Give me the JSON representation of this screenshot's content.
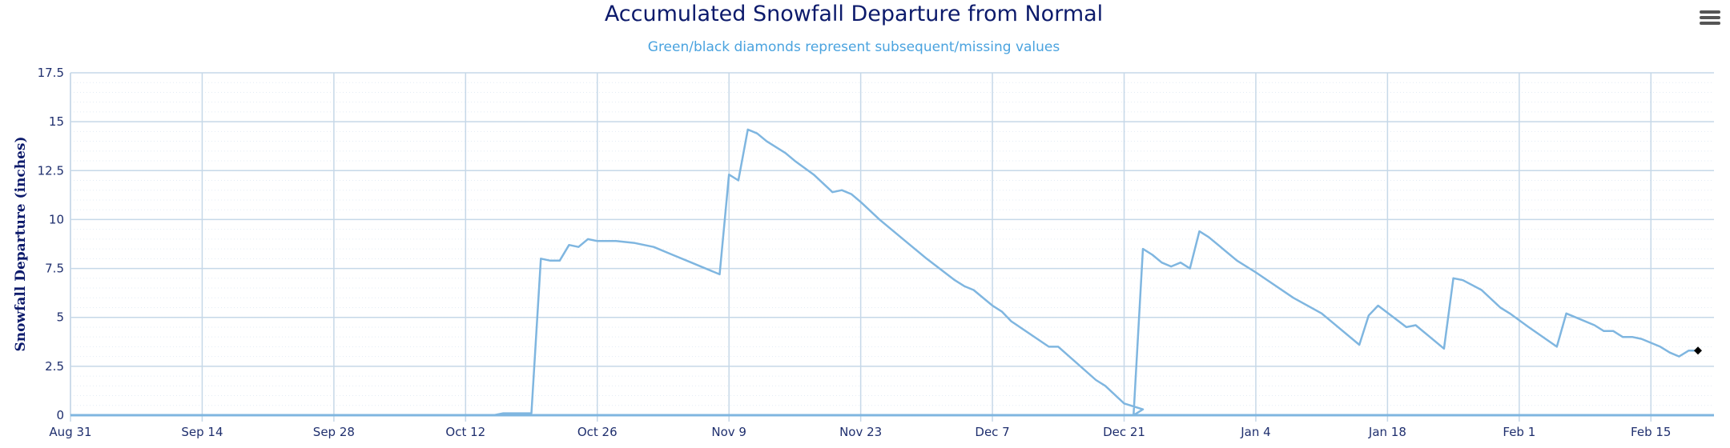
{
  "chart_data": {
    "type": "line",
    "title": "Accumulated Snowfall Departure from Normal",
    "subtitle": "Green/black diamonds represent subsequent/missing values",
    "xlabel": "",
    "ylabel": "Snowfall Departure (inches)",
    "ylim": [
      0,
      17.5
    ],
    "yticks": [
      "0",
      "2.5",
      "5",
      "7.5",
      "10",
      "12.5",
      "15",
      "17.5"
    ],
    "xticks": [
      "Aug 31",
      "Sep 14",
      "Sep 28",
      "Oct 12",
      "Oct 26",
      "Nov 9",
      "Nov 23",
      "Dec 7",
      "Dec 21",
      "Jan 4",
      "Jan 18",
      "Feb 1",
      "Feb 15"
    ],
    "x_start": "Aug 31",
    "x_end": "Feb 20",
    "grid": true,
    "line_color": "#7fb6e0",
    "missing_marker_color": "#000000",
    "series": [
      {
        "points": [
          [
            "Aug 31",
            0
          ],
          [
            "Oct 15",
            0
          ],
          [
            "Oct 16",
            0.1
          ],
          [
            "Oct 19",
            0.1
          ],
          [
            "Oct 20",
            8.0
          ],
          [
            "Oct 21",
            7.9
          ],
          [
            "Oct 22",
            7.9
          ],
          [
            "Oct 23",
            8.7
          ],
          [
            "Oct 24",
            8.6
          ],
          [
            "Oct 25",
            9.0
          ],
          [
            "Oct 26",
            8.9
          ],
          [
            "Oct 28",
            8.9
          ],
          [
            "Oct 30",
            8.8
          ],
          [
            "Nov 1",
            8.6
          ],
          [
            "Nov 3",
            8.2
          ],
          [
            "Nov 5",
            7.8
          ],
          [
            "Nov 8",
            7.2
          ],
          [
            "Nov 9",
            12.3
          ],
          [
            "Nov 10",
            12.0
          ],
          [
            "Nov 11",
            14.6
          ],
          [
            "Nov 12",
            14.4
          ],
          [
            "Nov 13",
            14.0
          ],
          [
            "Nov 15",
            13.4
          ],
          [
            "Nov 16",
            13.0
          ],
          [
            "Nov 18",
            12.3
          ],
          [
            "Nov 20",
            11.4
          ],
          [
            "Nov 21",
            11.5
          ],
          [
            "Nov 22",
            11.3
          ],
          [
            "Nov 23",
            10.9
          ],
          [
            "Nov 25",
            10.0
          ],
          [
            "Nov 28",
            8.8
          ],
          [
            "Nov 30",
            8.0
          ],
          [
            "Dec 3",
            6.9
          ],
          [
            "Dec 4",
            6.6
          ],
          [
            "Dec 5",
            6.4
          ],
          [
            "Dec 7",
            5.6
          ],
          [
            "Dec 8",
            5.3
          ],
          [
            "Dec 9",
            4.8
          ],
          [
            "Dec 13",
            3.5
          ],
          [
            "Dec 14",
            3.5
          ],
          [
            "Dec 18",
            1.8
          ],
          [
            "Dec 19",
            1.5
          ],
          [
            "Dec 21",
            0.6
          ],
          [
            "Dec 23",
            0.3
          ],
          [
            "Dec 22",
            0.0
          ],
          [
            "Dec 23",
            8.5
          ],
          [
            "Dec 24",
            8.2
          ],
          [
            "Dec 25",
            7.8
          ],
          [
            "Dec 26",
            7.6
          ],
          [
            "Dec 27",
            7.8
          ],
          [
            "Dec 28",
            7.5
          ],
          [
            "Dec 29",
            9.4
          ],
          [
            "Dec 30",
            9.1
          ],
          [
            "Jan 2",
            7.9
          ],
          [
            "Jan 4",
            7.3
          ],
          [
            "Jan 8",
            6.0
          ],
          [
            "Jan 11",
            5.2
          ],
          [
            "Jan 12",
            4.8
          ],
          [
            "Jan 15",
            3.6
          ],
          [
            "Jan 16",
            5.1
          ],
          [
            "Jan 17",
            5.6
          ],
          [
            "Jan 20",
            4.5
          ],
          [
            "Jan 21",
            4.6
          ],
          [
            "Jan 24",
            3.4
          ],
          [
            "Jan 25",
            7.0
          ],
          [
            "Jan 26",
            6.9
          ],
          [
            "Jan 28",
            6.4
          ],
          [
            "Jan 30",
            5.5
          ],
          [
            "Jan 31",
            5.2
          ],
          [
            "Feb 2",
            4.5
          ],
          [
            "Feb 5",
            3.5
          ],
          [
            "Feb 6",
            5.2
          ],
          [
            "Feb 7",
            5.0
          ],
          [
            "Feb 9",
            4.6
          ],
          [
            "Feb 10",
            4.3
          ],
          [
            "Feb 11",
            4.3
          ],
          [
            "Feb 12",
            4.0
          ],
          [
            "Feb 13",
            4.0
          ],
          [
            "Feb 14",
            3.9
          ],
          [
            "Feb 16",
            3.5
          ],
          [
            "Feb 17",
            3.2
          ],
          [
            "Feb 18",
            3.0
          ],
          [
            "Feb 19",
            3.3
          ],
          [
            "Feb 20",
            3.3
          ]
        ]
      }
    ],
    "missing_points": [
      [
        "Feb 20",
        3.3
      ]
    ]
  },
  "menu_icon": "hamburger-menu-icon"
}
